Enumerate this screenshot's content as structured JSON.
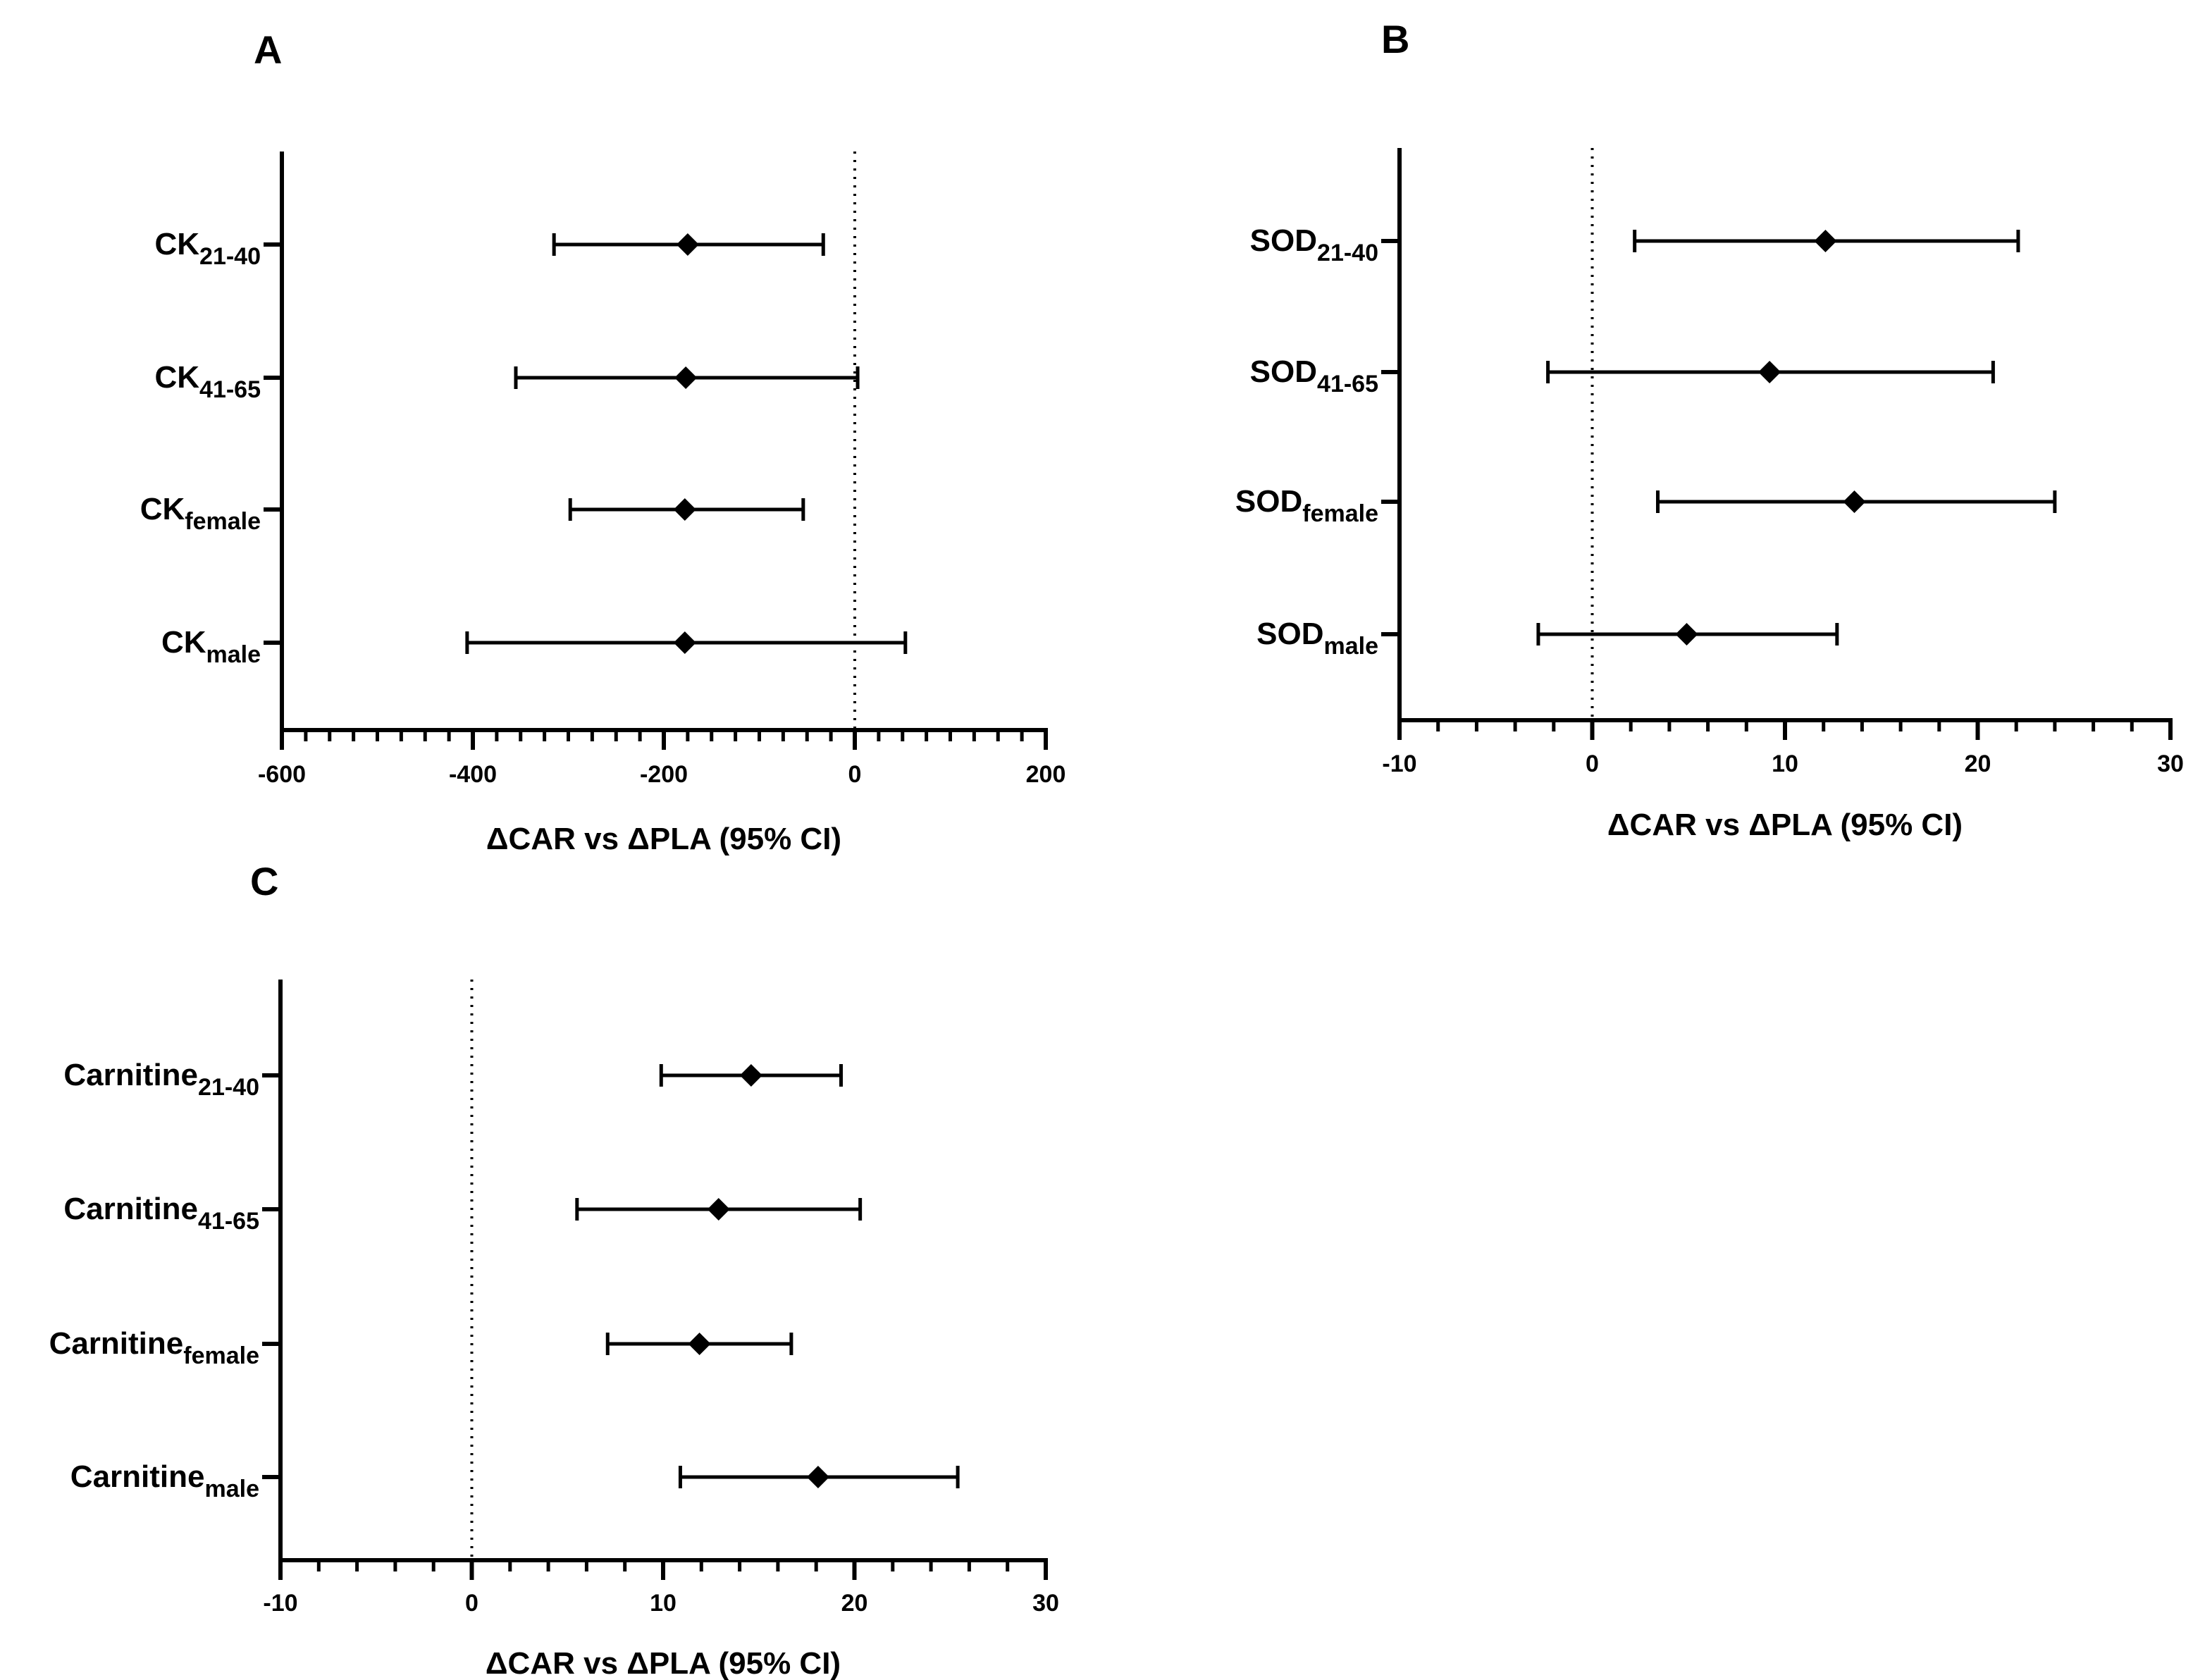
{
  "figure": {
    "panels": [
      {
        "letter": "A"
      },
      {
        "letter": "B"
      },
      {
        "letter": "C"
      }
    ]
  },
  "chart_data": [
    {
      "type": "forest",
      "panel": "A",
      "xlabel": "ΔCAR vs ΔPLA (95% CI)",
      "xlim": [
        -600,
        200
      ],
      "xticks": [
        -600,
        -400,
        -200,
        0,
        200
      ],
      "xticklabels": [
        "-600",
        "-400",
        "-200",
        "0",
        "200"
      ],
      "minor_step": 25,
      "reference_line": 0,
      "rows": [
        {
          "base": "CK",
          "sub": "21-40",
          "estimate": -175,
          "lower": -315,
          "upper": -33
        },
        {
          "base": "CK",
          "sub": "41-65",
          "estimate": -177,
          "lower": -355,
          "upper": 3
        },
        {
          "base": "CK",
          "sub": "female",
          "estimate": -178,
          "lower": -298,
          "upper": -54
        },
        {
          "base": "CK",
          "sub": "male",
          "estimate": -178,
          "lower": -406,
          "upper": 53
        }
      ]
    },
    {
      "type": "forest",
      "panel": "B",
      "xlabel": "ΔCAR vs ΔPLA (95% CI)",
      "xlim": [
        -10,
        30
      ],
      "xticks": [
        -10,
        0,
        10,
        20,
        30
      ],
      "xticklabels": [
        "-10",
        "0",
        "10",
        "20",
        "30"
      ],
      "minor_step": 2,
      "reference_line": 0,
      "rows": [
        {
          "base": "SOD",
          "sub": "21-40",
          "estimate": 12.1,
          "lower": 2.2,
          "upper": 22.1
        },
        {
          "base": "SOD",
          "sub": "41-65",
          "estimate": 9.2,
          "lower": -2.3,
          "upper": 20.8
        },
        {
          "base": "SOD",
          "sub": "female",
          "estimate": 13.6,
          "lower": 3.4,
          "upper": 24.0
        },
        {
          "base": "SOD",
          "sub": "male",
          "estimate": 4.9,
          "lower": -2.8,
          "upper": 12.7
        }
      ]
    },
    {
      "type": "forest",
      "panel": "C",
      "xlabel": "ΔCAR vs ΔPLA (95% CI)",
      "xlim": [
        -10,
        30
      ],
      "xticks": [
        -10,
        0,
        10,
        20,
        30
      ],
      "xticklabels": [
        "-10",
        "0",
        "10",
        "20",
        "30"
      ],
      "minor_step": 2,
      "reference_line": 0,
      "rows": [
        {
          "base": "Carnitine",
          "sub": "21-40",
          "estimate": 14.6,
          "lower": 9.9,
          "upper": 19.3
        },
        {
          "base": "Carnitine",
          "sub": "41-65",
          "estimate": 12.9,
          "lower": 5.5,
          "upper": 20.3
        },
        {
          "base": "Carnitine",
          "sub": "female",
          "estimate": 11.9,
          "lower": 7.1,
          "upper": 16.7
        },
        {
          "base": "Carnitine",
          "sub": "male",
          "estimate": 18.1,
          "lower": 10.9,
          "upper": 25.4
        }
      ]
    }
  ]
}
